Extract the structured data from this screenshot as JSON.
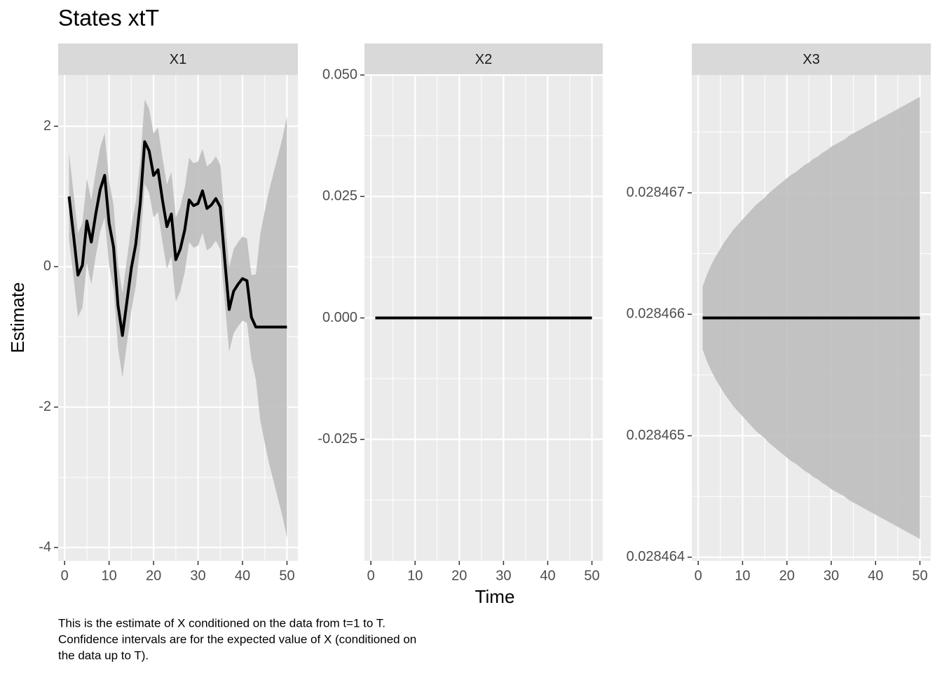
{
  "title": "States xtT",
  "x_label": "Time",
  "y_label": "Estimate",
  "caption": [
    "This is the estimate of X conditioned on the data from t=1 to T.",
    "Confidence intervals are for the expected value of X (conditioned on",
    "the data up to T)."
  ],
  "chart_data": [
    {
      "type": "line",
      "title": "X1",
      "color": "#000000",
      "band_color": "#bebebe",
      "grid": true,
      "x": [
        1,
        2,
        3,
        4,
        5,
        6,
        7,
        8,
        9,
        10,
        11,
        12,
        13,
        14,
        15,
        16,
        17,
        18,
        19,
        20,
        21,
        22,
        23,
        24,
        25,
        26,
        27,
        28,
        29,
        30,
        31,
        32,
        33,
        34,
        35,
        36,
        37,
        38,
        39,
        40,
        41,
        42,
        43,
        44,
        45,
        46,
        47,
        48,
        49,
        50
      ],
      "values": [
        1.0,
        0.45,
        -0.12,
        0.02,
        0.65,
        0.35,
        0.75,
        1.1,
        1.3,
        0.62,
        0.28,
        -0.55,
        -0.98,
        -0.5,
        -0.02,
        0.32,
        0.9,
        1.78,
        1.65,
        1.3,
        1.38,
        0.95,
        0.57,
        0.75,
        0.1,
        0.25,
        0.52,
        0.95,
        0.87,
        0.9,
        1.08,
        0.83,
        0.88,
        0.97,
        0.85,
        0.1,
        -0.61,
        -0.35,
        -0.25,
        -0.17,
        -0.2,
        -0.72,
        -0.86,
        -0.86,
        -0.86,
        -0.86,
        -0.86,
        -0.86,
        -0.86,
        -0.86
      ],
      "upper": [
        1.62,
        1.05,
        0.48,
        0.62,
        1.25,
        0.95,
        1.35,
        1.7,
        1.9,
        1.22,
        0.88,
        0.05,
        -0.38,
        0.1,
        0.58,
        0.92,
        1.5,
        2.38,
        2.25,
        1.9,
        1.98,
        1.55,
        1.17,
        1.35,
        0.7,
        0.85,
        1.12,
        1.55,
        1.47,
        1.5,
        1.68,
        1.43,
        1.48,
        1.57,
        1.45,
        0.7,
        -0.01,
        0.25,
        0.35,
        0.43,
        0.4,
        -0.12,
        -0.11,
        0.47,
        0.79,
        1.09,
        1.34,
        1.59,
        1.84,
        2.14
      ],
      "lower": [
        0.38,
        -0.15,
        -0.72,
        -0.58,
        0.05,
        -0.25,
        0.15,
        0.5,
        0.7,
        0.02,
        -0.32,
        -1.15,
        -1.58,
        -1.1,
        -0.62,
        -0.28,
        0.3,
        1.18,
        1.05,
        0.7,
        0.78,
        0.35,
        -0.03,
        0.15,
        -0.5,
        -0.35,
        -0.08,
        0.35,
        0.27,
        0.3,
        0.48,
        0.23,
        0.28,
        0.37,
        0.25,
        -0.5,
        -1.21,
        -0.95,
        -0.85,
        -0.77,
        -0.8,
        -1.32,
        -1.61,
        -2.19,
        -2.51,
        -2.81,
        -3.06,
        -3.31,
        -3.56,
        -3.86
      ],
      "xlim": [
        -1.45,
        52.45
      ],
      "xticks": [
        0,
        10,
        20,
        30,
        40,
        50
      ],
      "minor_xticks": [
        5,
        15,
        25,
        35,
        45
      ],
      "ylim": [
        -4.19,
        2.73
      ],
      "yticks": [
        -4,
        -2,
        0,
        2
      ],
      "minor_yticks": [
        -3,
        -1,
        1
      ]
    },
    {
      "type": "line",
      "title": "X2",
      "color": "#000000",
      "grid": true,
      "x": [
        1,
        2,
        3,
        4,
        5,
        6,
        7,
        8,
        9,
        10,
        11,
        12,
        13,
        14,
        15,
        16,
        17,
        18,
        19,
        20,
        21,
        22,
        23,
        24,
        25,
        26,
        27,
        28,
        29,
        30,
        31,
        32,
        33,
        34,
        35,
        36,
        37,
        38,
        39,
        40,
        41,
        42,
        43,
        44,
        45,
        46,
        47,
        48,
        49,
        50
      ],
      "values": [
        0,
        0,
        0,
        0,
        0,
        0,
        0,
        0,
        0,
        0,
        0,
        0,
        0,
        0,
        0,
        0,
        0,
        0,
        0,
        0,
        0,
        0,
        0,
        0,
        0,
        0,
        0,
        0,
        0,
        0,
        0,
        0,
        0,
        0,
        0,
        0,
        0,
        0,
        0,
        0,
        0,
        0,
        0,
        0,
        0,
        0,
        0,
        0,
        0,
        0
      ],
      "xlim": [
        -1.45,
        52.45
      ],
      "xticks": [
        0,
        10,
        20,
        30,
        40,
        50
      ],
      "minor_xticks": [
        5,
        15,
        25,
        35,
        45
      ],
      "ylim": [
        -0.05,
        0.05
      ],
      "yticks": [
        {
          "value": -0.025,
          "label": "-0.025"
        },
        {
          "value": 0,
          "label": "0.000"
        },
        {
          "value": 0.025,
          "label": "0.025"
        },
        {
          "value": 0.05,
          "label": "0.050"
        }
      ],
      "minor_yticks": [
        -0.0375,
        -0.0125,
        0.0125,
        0.0375
      ]
    },
    {
      "type": "line",
      "title": "X3",
      "color": "#000000",
      "band_color": "#bebebe",
      "grid": true,
      "x": [
        1,
        2,
        3,
        4,
        5,
        6,
        7,
        8,
        9,
        10,
        11,
        12,
        13,
        14,
        15,
        16,
        17,
        18,
        19,
        20,
        21,
        22,
        23,
        24,
        25,
        26,
        27,
        28,
        29,
        30,
        31,
        32,
        33,
        34,
        35,
        36,
        37,
        38,
        39,
        40,
        41,
        42,
        43,
        44,
        45,
        46,
        47,
        48,
        49,
        50
      ],
      "values": [
        0.02846597,
        0.02846597,
        0.02846597,
        0.02846597,
        0.02846597,
        0.02846597,
        0.02846597,
        0.02846597,
        0.02846597,
        0.02846597,
        0.02846597,
        0.02846597,
        0.02846597,
        0.02846597,
        0.02846597,
        0.02846597,
        0.02846597,
        0.02846597,
        0.02846597,
        0.02846597,
        0.02846597,
        0.02846597,
        0.02846597,
        0.02846597,
        0.02846597,
        0.02846597,
        0.02846597,
        0.02846597,
        0.02846597,
        0.02846597,
        0.02846597,
        0.02846597,
        0.02846597,
        0.02846597,
        0.02846597,
        0.02846597,
        0.02846597,
        0.02846597,
        0.02846597,
        0.02846597,
        0.02846597,
        0.02846597,
        0.02846597,
        0.02846597,
        0.02846597,
        0.02846597,
        0.02846597,
        0.02846597,
        0.02846597,
        0.02846597
      ],
      "upper": [
        0.02846623,
        0.02846633,
        0.02846641,
        0.02846648,
        0.02846654,
        0.0284666,
        0.02846665,
        0.0284667,
        0.02846674,
        0.02846678,
        0.02846682,
        0.02846686,
        0.0284669,
        0.02846693,
        0.02846696,
        0.028467,
        0.02846703,
        0.02846706,
        0.02846709,
        0.02846712,
        0.02846715,
        0.02846717,
        0.0284672,
        0.02846723,
        0.02846725,
        0.02846728,
        0.0284673,
        0.02846733,
        0.02846735,
        0.02846738,
        0.0284674,
        0.02846742,
        0.02846744,
        0.02846747,
        0.02846749,
        0.02846751,
        0.02846753,
        0.02846755,
        0.02846757,
        0.02846759,
        0.02846761,
        0.02846763,
        0.02846765,
        0.02846767,
        0.02846769,
        0.02846771,
        0.02846773,
        0.02846775,
        0.02846777,
        0.02846779
      ],
      "lower": [
        0.02846571,
        0.02846561,
        0.02846553,
        0.02846546,
        0.0284654,
        0.02846534,
        0.02846529,
        0.02846524,
        0.0284652,
        0.02846516,
        0.02846512,
        0.02846508,
        0.02846504,
        0.02846501,
        0.02846498,
        0.02846494,
        0.02846491,
        0.02846488,
        0.02846485,
        0.02846482,
        0.02846479,
        0.02846477,
        0.02846474,
        0.02846471,
        0.02846469,
        0.02846466,
        0.02846464,
        0.02846461,
        0.02846459,
        0.02846456,
        0.02846454,
        0.02846452,
        0.0284645,
        0.02846447,
        0.02846445,
        0.02846443,
        0.02846441,
        0.02846439,
        0.02846437,
        0.02846435,
        0.02846433,
        0.02846431,
        0.02846429,
        0.02846427,
        0.02846425,
        0.02846423,
        0.02846421,
        0.02846419,
        0.02846417,
        0.02846415
      ],
      "xlim": [
        -1.45,
        52.45
      ],
      "xticks": [
        0,
        10,
        20,
        30,
        40,
        50
      ],
      "minor_xticks": [
        5,
        15,
        25,
        35,
        45
      ],
      "ylim": [
        0.02846397,
        0.02846797
      ],
      "yticks": [
        0.028464,
        0.028465,
        0.028466,
        0.028467
      ],
      "minor_yticks": [
        0.0284645,
        0.0284655,
        0.0284665,
        0.0284675
      ]
    }
  ]
}
